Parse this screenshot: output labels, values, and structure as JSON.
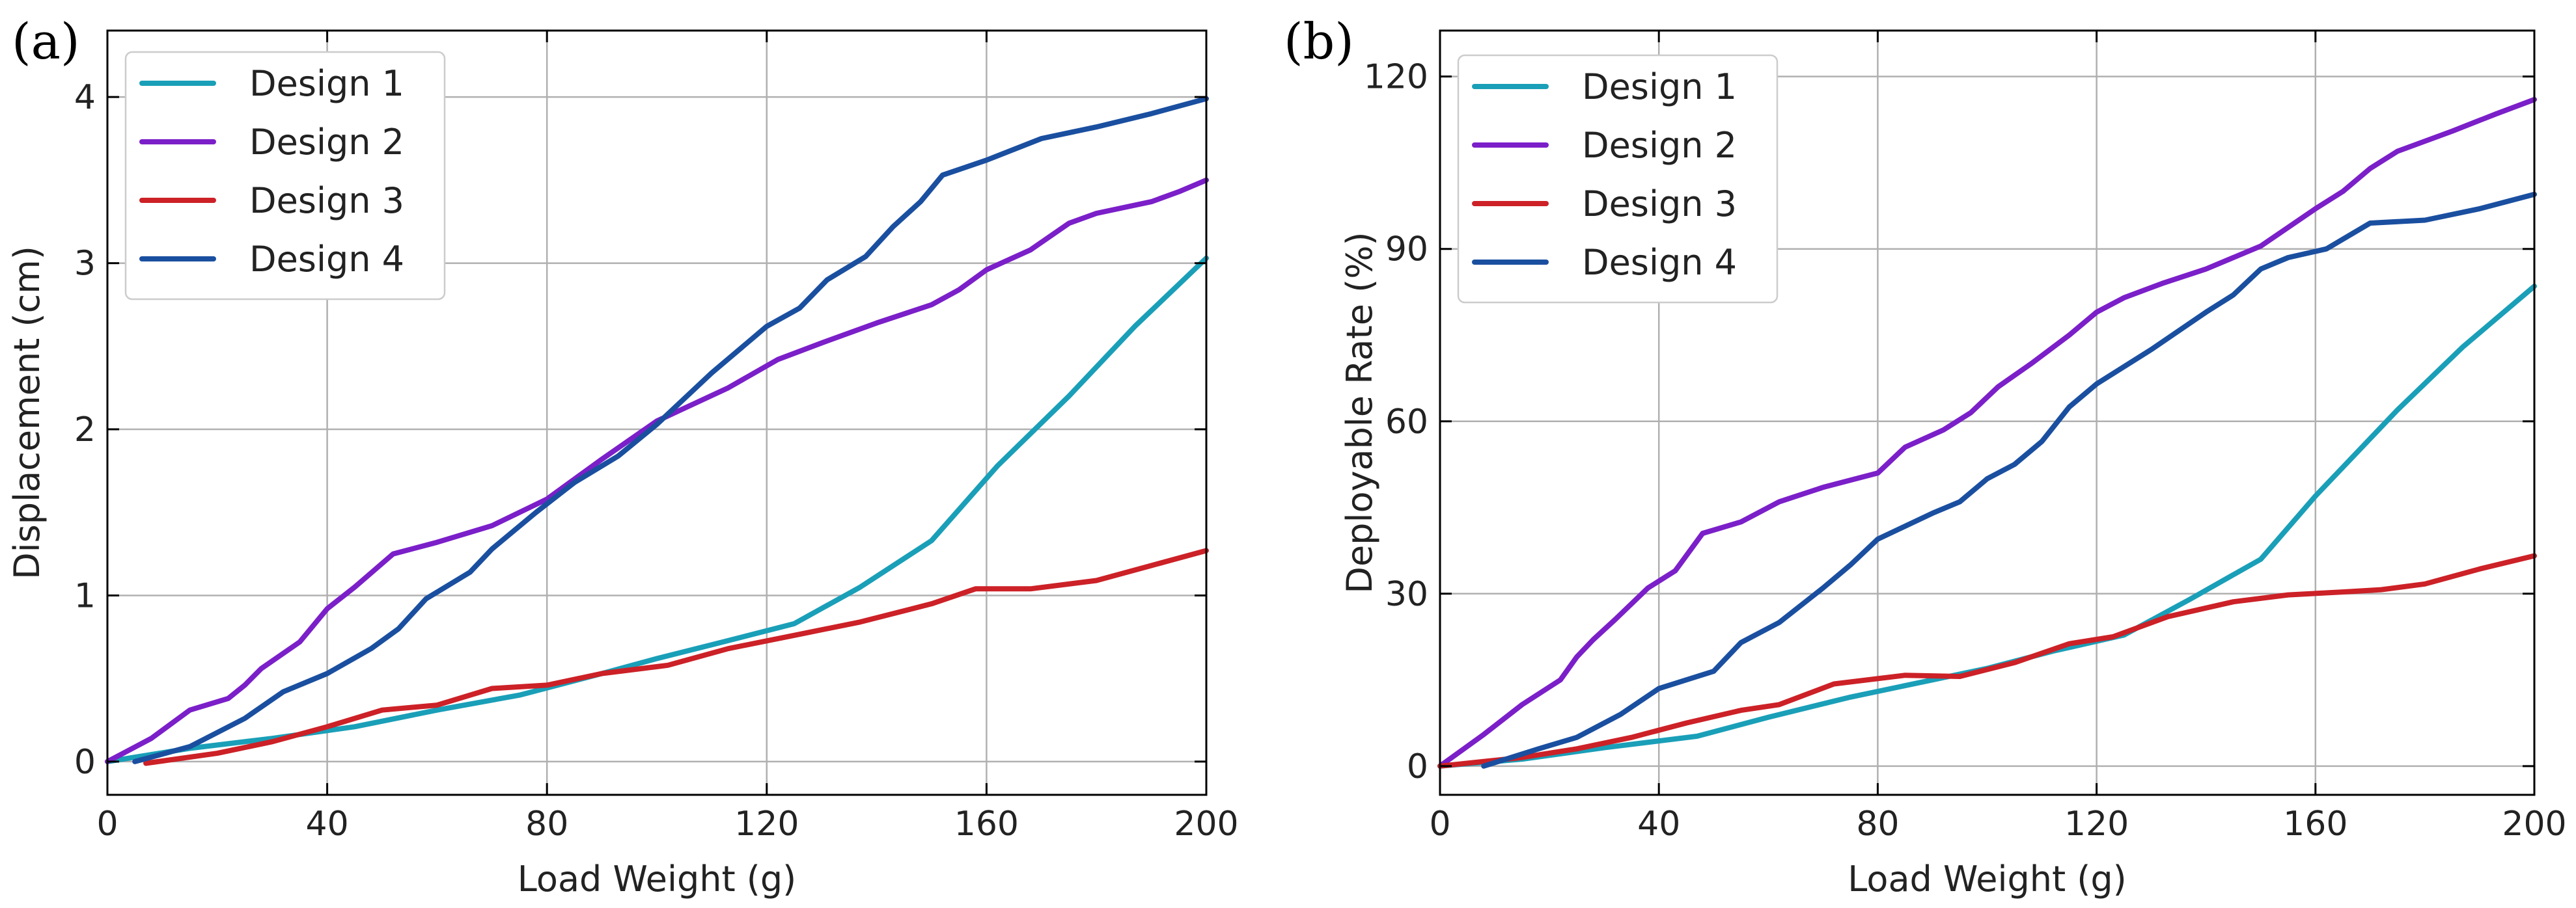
{
  "chart_data": [
    {
      "type": "line",
      "panel_label": "(a)",
      "xlabel": "Load Weight (g)",
      "ylabel": "Displacement (cm)",
      "xlim": [
        0,
        200
      ],
      "ylim": [
        -0.2,
        4.4
      ],
      "xticks": [
        0,
        40,
        80,
        120,
        160,
        200
      ],
      "yticks": [
        0,
        1,
        2,
        3,
        4
      ],
      "grid": true,
      "legend_position": "top-left",
      "series": [
        {
          "name": "Design 1",
          "color": "#1a9fb8",
          "x": [
            0,
            15,
            30,
            45,
            60,
            75,
            90,
            100,
            112,
            125,
            137,
            150,
            162,
            175,
            187,
            200
          ],
          "y": [
            0,
            0.08,
            0.14,
            0.21,
            0.31,
            0.4,
            0.53,
            0.62,
            0.72,
            0.83,
            1.05,
            1.33,
            1.78,
            2.2,
            2.62,
            3.03
          ]
        },
        {
          "name": "Design 2",
          "color": "#7b1fc9",
          "x": [
            0,
            8,
            15,
            22,
            25,
            28,
            35,
            40,
            45,
            52,
            60,
            70,
            80,
            90,
            100,
            113,
            122,
            130,
            140,
            150,
            155,
            160,
            168,
            175,
            180,
            190,
            195,
            200
          ],
          "y": [
            0,
            0.14,
            0.31,
            0.38,
            0.46,
            0.56,
            0.72,
            0.92,
            1.05,
            1.25,
            1.32,
            1.42,
            1.58,
            1.82,
            2.05,
            2.25,
            2.42,
            2.52,
            2.64,
            2.75,
            2.84,
            2.96,
            3.08,
            3.24,
            3.3,
            3.37,
            3.43,
            3.5
          ]
        },
        {
          "name": "Design 3",
          "color": "#cc2127",
          "x": [
            7,
            20,
            30,
            40,
            50,
            60,
            70,
            80,
            90,
            102,
            113,
            125,
            137,
            150,
            158,
            168,
            180,
            190,
            200
          ],
          "y": [
            -0.01,
            0.05,
            0.12,
            0.21,
            0.31,
            0.34,
            0.44,
            0.46,
            0.53,
            0.58,
            0.68,
            0.76,
            0.84,
            0.95,
            1.04,
            1.04,
            1.09,
            1.18,
            1.27
          ]
        },
        {
          "name": "Design 4",
          "color": "#1a4fa0",
          "x": [
            5,
            15,
            25,
            32,
            40,
            48,
            53,
            58,
            66,
            70,
            78,
            85,
            93,
            100,
            110,
            120,
            126,
            131,
            138,
            143,
            148,
            152,
            160,
            170,
            180,
            190,
            200
          ],
          "y": [
            0,
            0.09,
            0.26,
            0.42,
            0.53,
            0.68,
            0.8,
            0.98,
            1.14,
            1.28,
            1.5,
            1.68,
            1.84,
            2.03,
            2.34,
            2.62,
            2.73,
            2.9,
            3.04,
            3.22,
            3.37,
            3.53,
            3.62,
            3.75,
            3.82,
            3.9,
            3.99
          ]
        }
      ]
    },
    {
      "type": "line",
      "panel_label": "(b)",
      "xlabel": "Load Weight (g)",
      "ylabel": "Deployable Rate (%)",
      "xlim": [
        0,
        200
      ],
      "ylim": [
        -5,
        128
      ],
      "xticks": [
        0,
        40,
        80,
        120,
        160,
        200
      ],
      "yticks": [
        0,
        30,
        60,
        90,
        120
      ],
      "grid": true,
      "legend_position": "top-left",
      "series": [
        {
          "name": "Design 1",
          "color": "#1a9fb8",
          "x": [
            0,
            15,
            30,
            47,
            60,
            75,
            90,
            100,
            112,
            125,
            137,
            150,
            160,
            175,
            187,
            200
          ],
          "y": [
            0,
            1.2,
            3.2,
            5.2,
            8.5,
            12.0,
            15.0,
            17.0,
            20.0,
            22.8,
            29.0,
            36.0,
            47.0,
            62.0,
            73.0,
            83.5
          ]
        },
        {
          "name": "Design 2",
          "color": "#7b1fc9",
          "x": [
            0,
            8,
            15,
            22,
            25,
            28,
            32,
            38,
            43,
            48,
            55,
            62,
            70,
            80,
            85,
            92,
            97,
            102,
            108,
            115,
            120,
            125,
            132,
            140,
            150,
            160,
            165,
            170,
            175,
            185,
            193,
            200
          ],
          "y": [
            0,
            5.5,
            10.7,
            15.0,
            19.0,
            22.0,
            25.5,
            31.0,
            34.0,
            40.5,
            42.5,
            46.0,
            48.5,
            51.0,
            55.5,
            58.5,
            61.5,
            66.0,
            70.0,
            75.0,
            79.0,
            81.5,
            84.0,
            86.5,
            90.5,
            97.0,
            100.0,
            104.0,
            107.0,
            110.5,
            113.5,
            116.0
          ]
        },
        {
          "name": "Design 3",
          "color": "#cc2127",
          "x": [
            0,
            15,
            25,
            35,
            45,
            55,
            62,
            72,
            85,
            95,
            105,
            115,
            123,
            133,
            145,
            155,
            165,
            172,
            180,
            190,
            200
          ],
          "y": [
            0,
            1.5,
            3.0,
            5.0,
            7.5,
            9.7,
            10.7,
            14.3,
            15.8,
            15.6,
            18.0,
            21.3,
            22.5,
            26.0,
            28.6,
            29.8,
            30.3,
            30.7,
            31.7,
            34.3,
            36.6
          ]
        },
        {
          "name": "Design 4",
          "color": "#1a4fa0",
          "x": [
            8,
            18,
            25,
            33,
            40,
            45,
            50,
            55,
            62,
            70,
            75,
            80,
            90,
            95,
            100,
            105,
            110,
            115,
            120,
            130,
            140,
            145,
            150,
            155,
            162,
            170,
            180,
            190,
            200
          ],
          "y": [
            0,
            3.0,
            5.0,
            9.0,
            13.5,
            15.0,
            16.5,
            21.5,
            25.0,
            31.0,
            35.0,
            39.5,
            44.0,
            46.0,
            50.0,
            52.5,
            56.5,
            62.5,
            66.5,
            72.5,
            79.0,
            82.0,
            86.5,
            88.5,
            90.0,
            94.5,
            95.0,
            97.0,
            99.5
          ]
        }
      ]
    }
  ]
}
